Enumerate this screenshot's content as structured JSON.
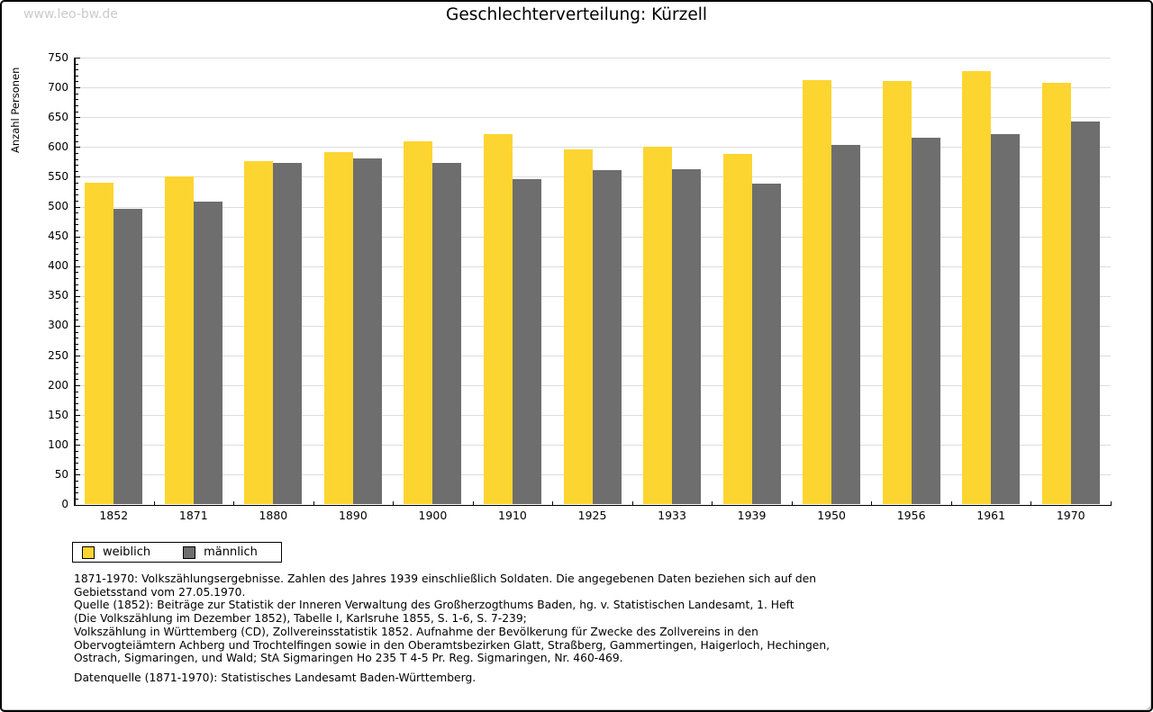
{
  "watermark": "www.leo-bw.de",
  "chart_data": {
    "type": "bar",
    "title": "Geschlechterverteilung: Kürzell",
    "ylabel": "Anzahl Personen",
    "xlabel": "",
    "categories": [
      "1852",
      "1871",
      "1880",
      "1890",
      "1900",
      "1910",
      "1925",
      "1933",
      "1939",
      "1950",
      "1956",
      "1961",
      "1970"
    ],
    "series": [
      {
        "name": "weiblich",
        "color": "#FDD530",
        "values": [
          540,
          550,
          577,
          591,
          609,
          621,
          596,
          600,
          588,
          712,
          710,
          727,
          707
        ]
      },
      {
        "name": "männlich",
        "color": "#6E6E6E",
        "values": [
          496,
          508,
          573,
          581,
          574,
          546,
          561,
          562,
          538,
          603,
          615,
          622,
          643
        ]
      }
    ],
    "ylim": [
      0,
      750
    ],
    "ytick_major": 50,
    "ytick_minor": 10,
    "grid": true,
    "legend_position": "bottom-left",
    "grid_color": "#DDDDDD",
    "axis_color": "#000000"
  },
  "footer": {
    "lines": [
      "1871-1970: Volkszählungsergebnisse. Zahlen des Jahres 1939 einschließlich Soldaten. Die angegebenen Daten beziehen sich auf den",
      "Gebietsstand vom 27.05.1970.",
      "Quelle (1852): Beiträge zur Statistik der Inneren Verwaltung des Großherzogthums Baden, hg. v. Statistischen Landesamt, 1. Heft",
      "(Die Volkszählung im Dezember 1852), Tabelle I, Karlsruhe 1855, S. 1-6, S. 7-239;",
      "Volkszählung in Württemberg (CD), Zollvereinsstatistik 1852. Aufnahme der Bevölkerung für Zwecke des Zollvereins in den",
      "Obervogteiämtern Achberg und Trochtelfingen sowie in den Oberamtsbezirken Glatt, Straßberg, Gammertingen, Haigerloch, Hechingen,",
      "Ostrach, Sigmaringen, und Wald; StA Sigmaringen Ho 235 T 4-5 Pr. Reg. Sigmaringen, Nr. 460-469."
    ],
    "source": "Datenquelle (1871-1970): Statistisches Landesamt Baden-Württemberg."
  }
}
